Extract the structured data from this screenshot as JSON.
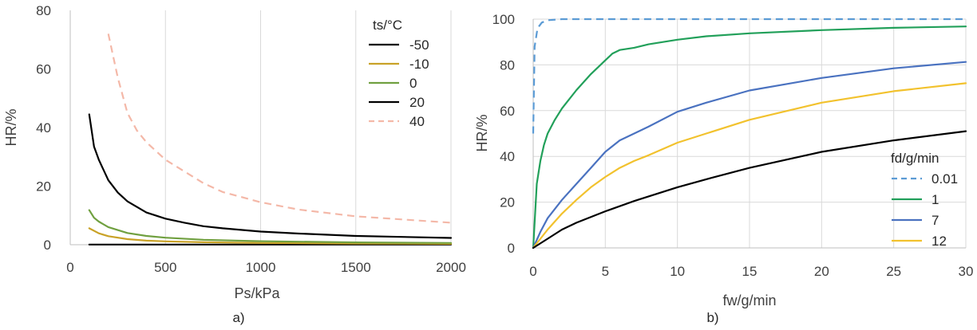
{
  "chart_data": [
    {
      "panel": "a)",
      "type": "line",
      "xlabel": "Ps/kPa",
      "ylabel": "HR/%",
      "xlim": [
        0,
        2000
      ],
      "ylim": [
        0,
        80
      ],
      "xticks": [
        0,
        500,
        1000,
        1500,
        2000
      ],
      "yticks": [
        0,
        20,
        40,
        60,
        80
      ],
      "grid": "vertical",
      "legend_title": "ts/°C",
      "legend_position": "top-right",
      "series": [
        {
          "name": "-50",
          "color": "#000000",
          "dash": "solid",
          "x": [
            100,
            2000
          ],
          "y": [
            0.05,
            0.05
          ]
        },
        {
          "name": "-10",
          "color": "#c9a227",
          "dash": "solid",
          "x": [
            100,
            150,
            200,
            300,
            400,
            500,
            700,
            1000,
            1500,
            2000
          ],
          "y": [
            5.6,
            3.9,
            2.9,
            1.9,
            1.4,
            1.15,
            0.85,
            0.6,
            0.4,
            0.3
          ]
        },
        {
          "name": "0",
          "color": "#70a040",
          "dash": "solid",
          "x": [
            100,
            125,
            150,
            200,
            300,
            400,
            500,
            700,
            1000,
            1500,
            2000
          ],
          "y": [
            11.8,
            9.2,
            7.9,
            6.0,
            4.0,
            3.0,
            2.4,
            1.7,
            1.2,
            0.8,
            0.6
          ]
        },
        {
          "name": "20",
          "color": "#000000",
          "dash": "solid",
          "x": [
            100,
            125,
            150,
            200,
            250,
            300,
            400,
            500,
            600,
            700,
            800,
            1000,
            1200,
            1500,
            2000
          ],
          "y": [
            44.5,
            33.5,
            29.0,
            22.0,
            17.8,
            14.8,
            11.0,
            8.9,
            7.5,
            6.3,
            5.6,
            4.5,
            3.8,
            3.0,
            2.3
          ]
        },
        {
          "name": "40",
          "color": "#f4b8a8",
          "dash": "dashed",
          "x": [
            200,
            250,
            300,
            350,
            400,
            500,
            600,
            700,
            800,
            1000,
            1200,
            1500,
            2000
          ],
          "y": [
            72,
            57,
            45,
            39,
            35,
            29,
            25,
            21,
            18,
            14.5,
            12,
            9.7,
            7.5
          ]
        }
      ]
    },
    {
      "panel": "b)",
      "type": "line",
      "xlabel": "fw/g/min",
      "ylabel": "HR/%",
      "xlim": [
        0,
        30
      ],
      "ylim": [
        0,
        100
      ],
      "xticks": [
        0,
        5,
        10,
        15,
        20,
        25,
        30
      ],
      "yticks": [
        0,
        20,
        40,
        60,
        80,
        100
      ],
      "grid": "both",
      "legend_title": "fd/g/min",
      "legend_position": "bottom-right",
      "series": [
        {
          "name": "0.01",
          "color": "#5b9bd5",
          "dash": "dashed",
          "x": [
            0,
            0.1,
            0.3,
            0.6,
            1.0,
            2,
            30
          ],
          "y": [
            50,
            88,
            96,
            98.5,
            99.5,
            100,
            100
          ]
        },
        {
          "name": "1",
          "color": "#22a05a",
          "dash": "solid",
          "x": [
            0,
            0.25,
            0.5,
            0.75,
            1,
            1.5,
            2,
            3,
            4,
            5,
            5.5,
            6,
            7,
            8,
            10,
            12,
            15,
            20,
            25,
            30
          ],
          "y": [
            0,
            28,
            38,
            45,
            50,
            56,
            61,
            69,
            76,
            82,
            85,
            86.5,
            87.5,
            89,
            91,
            92.5,
            93.8,
            95.2,
            96.2,
            96.8
          ]
        },
        {
          "name": "7",
          "color": "#4a72c0",
          "dash": "solid",
          "x": [
            0,
            0.5,
            1,
            2,
            3,
            4,
            5,
            6,
            7,
            8,
            10,
            12,
            15,
            20,
            25,
            30
          ],
          "y": [
            0,
            7,
            13,
            21,
            28,
            35,
            42,
            47,
            50,
            53,
            59.5,
            63.5,
            68.8,
            74.3,
            78.5,
            81.3
          ]
        },
        {
          "name": "12",
          "color": "#f2c22e",
          "dash": "solid",
          "x": [
            0,
            1,
            2,
            3,
            4,
            5,
            6,
            7,
            8,
            10,
            12,
            15,
            20,
            25,
            30
          ],
          "y": [
            0,
            8,
            15,
            21,
            26.5,
            31,
            35,
            38,
            40.5,
            46,
            50,
            56,
            63.5,
            68.5,
            72
          ]
        },
        {
          "name": "",
          "color": "#000000",
          "dash": "solid",
          "legend": false,
          "x": [
            0,
            1,
            2,
            3,
            5,
            7,
            10,
            12,
            15,
            20,
            25,
            30
          ],
          "y": [
            0,
            4,
            8,
            11,
            16,
            20.5,
            26.5,
            30,
            35,
            42,
            47,
            51
          ]
        }
      ]
    }
  ],
  "captions": {
    "a": "a)",
    "b": "b)"
  }
}
